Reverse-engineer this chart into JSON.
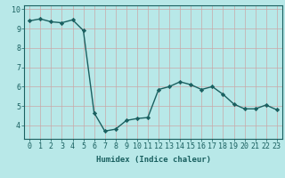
{
  "x": [
    0,
    1,
    2,
    3,
    4,
    5,
    6,
    7,
    8,
    9,
    10,
    11,
    12,
    13,
    14,
    15,
    16,
    17,
    18,
    19,
    20,
    21,
    22,
    23
  ],
  "y": [
    9.4,
    9.5,
    9.35,
    9.3,
    9.45,
    8.9,
    4.65,
    3.7,
    3.8,
    4.25,
    4.35,
    4.4,
    5.85,
    6.0,
    6.25,
    6.1,
    5.85,
    6.0,
    5.6,
    5.1,
    4.85,
    4.85,
    5.05,
    4.8
  ],
  "line_color": "#1a6060",
  "marker": "D",
  "markersize": 2.2,
  "background_color": "#b8e8e8",
  "grid_color": "#c8a8a8",
  "xlabel": "Humidex (Indice chaleur)",
  "xlim": [
    -0.5,
    23.5
  ],
  "ylim": [
    3.3,
    10.2
  ],
  "xticks": [
    0,
    1,
    2,
    3,
    4,
    5,
    6,
    7,
    8,
    9,
    10,
    11,
    12,
    13,
    14,
    15,
    16,
    17,
    18,
    19,
    20,
    21,
    22,
    23
  ],
  "yticks": [
    4,
    5,
    6,
    7,
    8,
    9,
    10
  ],
  "xlabel_fontsize": 6.5,
  "tick_fontsize": 6,
  "linewidth": 1.0
}
